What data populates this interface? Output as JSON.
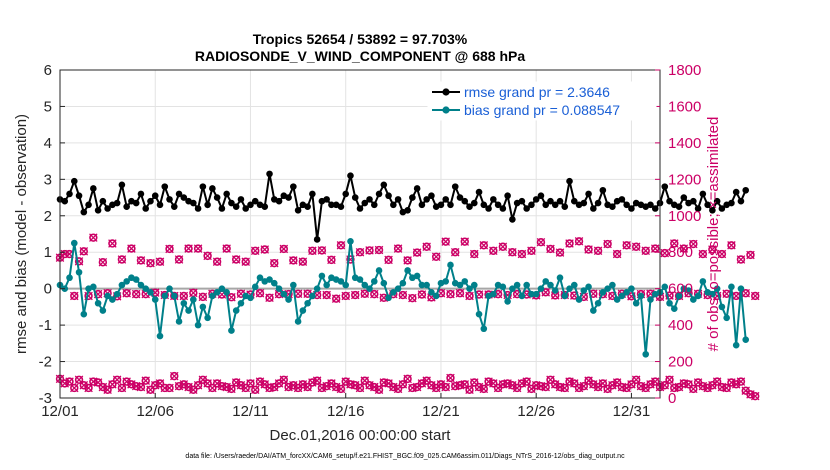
{
  "chart_data": {
    "type": "line",
    "title": "Tropics 52654 / 53892 = 97.703%",
    "subtitle": "RADIOSONDE_V_WIND_COMPONENT @ 688 hPa",
    "xlabel": "Dec.01,2016 00:00:00 start",
    "ylabel": "rmse and bias (model - observation)",
    "ylabel_right": "# of obs: o=possible; ×=assimilated",
    "xlim": [
      0,
      31.5
    ],
    "ylim": [
      -3,
      6
    ],
    "ylim_right": [
      0,
      1800
    ],
    "x_ticks": [
      0,
      5,
      10,
      15,
      20,
      25,
      30
    ],
    "x_tick_labels": [
      "12/01",
      "12/06",
      "12/11",
      "12/16",
      "12/21",
      "12/26",
      "12/31"
    ],
    "y_ticks": [
      -3,
      -2,
      -1,
      0,
      1,
      2,
      3,
      4,
      5,
      6
    ],
    "y_tick_labels": [
      "-3",
      "-2",
      "-1",
      "0",
      "1",
      "2",
      "3",
      "4",
      "5",
      "6"
    ],
    "y_ticks_right": [
      0,
      200,
      400,
      600,
      800,
      1000,
      1200,
      1400,
      1600,
      1800
    ],
    "y_tick_labels_right": [
      "0",
      "200",
      "400",
      "600",
      "800",
      "1000",
      "1200",
      "1400",
      "1600",
      "1800"
    ],
    "grid": true,
    "legend_position": "top-right",
    "footnote": "data file: /Users/raeder/DAI/ATM_forcXX/CAM6_setup/f.e21.FHIST_BGC.f09_025.CAM6assim.011/Diags_NTrS_2016-12/obs_diag_output.nc",
    "x_step": 0.25,
    "series": [
      {
        "name": "rmse grand pr = 2.3646",
        "color": "#000000",
        "marker": "circle",
        "values": [
          2.45,
          2.4,
          2.6,
          2.95,
          2.55,
          2.1,
          2.3,
          2.75,
          2.15,
          2.4,
          2.2,
          2.3,
          2.35,
          2.85,
          2.25,
          2.4,
          2.35,
          2.6,
          2.2,
          2.4,
          2.55,
          2.3,
          2.8,
          2.45,
          2.25,
          2.6,
          2.5,
          2.4,
          2.35,
          2.2,
          2.8,
          2.3,
          2.75,
          2.5,
          2.2,
          2.6,
          2.35,
          2.25,
          2.45,
          2.2,
          2.3,
          2.4,
          2.3,
          2.25,
          3.15,
          2.45,
          2.4,
          2.55,
          2.5,
          2.8,
          2.15,
          2.3,
          2.25,
          2.6,
          1.35,
          2.4,
          2.45,
          2.3,
          2.3,
          2.25,
          2.6,
          3.1,
          2.5,
          2.2,
          2.35,
          2.45,
          2.3,
          2.6,
          2.85,
          2.55,
          2.3,
          2.45,
          2.1,
          2.15,
          2.5,
          2.75,
          2.3,
          2.45,
          2.55,
          2.25,
          2.3,
          2.45,
          2.3,
          2.8,
          2.5,
          2.4,
          2.25,
          2.35,
          2.65,
          2.3,
          2.2,
          2.45,
          2.3,
          2.2,
          2.55,
          1.9,
          2.35,
          2.4,
          2.2,
          2.3,
          2.45,
          2.55,
          2.3,
          2.4,
          2.3,
          2.4,
          2.25,
          2.95,
          2.4,
          2.3,
          2.35,
          2.6,
          2.2,
          2.35,
          2.7,
          2.3,
          2.25,
          2.4,
          2.45,
          2.3,
          2.2,
          2.35,
          2.3,
          2.25,
          2.3,
          2.2,
          2.35,
          2.8,
          2.4,
          2.3,
          2.25,
          2.5,
          2.35,
          2.4,
          2.2,
          2.6,
          2.3,
          2.15,
          2.4,
          2.2,
          2.3,
          2.35,
          2.65,
          2.4,
          2.7
        ]
      },
      {
        "name": "bias grand pr = 0.088547",
        "color": "#00808a",
        "marker": "circle",
        "values": [
          0.1,
          0.0,
          0.3,
          1.25,
          0.45,
          -0.7,
          0.0,
          0.05,
          -0.4,
          -0.6,
          -0.2,
          -0.3,
          -0.15,
          0.1,
          0.2,
          0.3,
          0.25,
          0.1,
          0.0,
          -0.1,
          -0.3,
          -1.3,
          -0.2,
          0.0,
          -0.2,
          -0.9,
          -0.4,
          -0.6,
          -0.3,
          -1.0,
          -0.5,
          -0.8,
          -0.2,
          -0.1,
          0.0,
          -0.1,
          -1.15,
          -0.6,
          -0.4,
          -0.2,
          -0.25,
          0.05,
          0.3,
          0.2,
          0.25,
          0.15,
          0.0,
          -0.15,
          -0.3,
          0.1,
          -0.9,
          -0.6,
          -0.4,
          -0.2,
          0.0,
          0.35,
          0.1,
          0.3,
          0.25,
          0.2,
          0.1,
          1.3,
          0.3,
          0.25,
          0.1,
          0.0,
          0.2,
          0.5,
          0.15,
          -0.25,
          -0.1,
          0.0,
          0.15,
          0.5,
          0.3,
          0.35,
          0.1,
          0.1,
          -0.1,
          -0.2,
          0.15,
          0.2,
          0.65,
          0.15,
          0.1,
          0.2,
          0.0,
          0.1,
          -0.7,
          -1.1,
          -0.2,
          -0.15,
          0.1,
          0.05,
          -0.35,
          0.0,
          0.1,
          -0.2,
          0.1,
          -0.15,
          -0.15,
          0.0,
          0.2,
          0.1,
          -0.05,
          0.3,
          -0.2,
          0.0,
          0.1,
          -0.3,
          -0.05,
          0.05,
          -0.6,
          -0.4,
          -0.1,
          0.0,
          0.1,
          -0.3,
          -0.2,
          -0.1,
          0.0,
          -0.4,
          -0.2,
          -1.8,
          -0.3,
          -0.15,
          -0.1,
          0.05,
          -0.4,
          -0.55,
          -0.2,
          0.0,
          -0.05,
          -0.3,
          -0.2,
          0.2,
          -0.1,
          -0.15,
          0.0,
          -0.5,
          -0.8,
          0.05,
          -1.55,
          0.0,
          -1.4
        ]
      },
      {
        "name": "possible observations",
        "axis": "right",
        "color": "#cc0066",
        "marker": "circle-open",
        "values": [
          770,
          790,
          790,
          560,
          750,
          805,
          560,
          880,
          570,
          745,
          575,
          848,
          558,
          760,
          575,
          820,
          570,
          755,
          570,
          740,
          578,
          748,
          565,
          818,
          560,
          760,
          560,
          820,
          577,
          820,
          555,
          780,
          572,
          748,
          568,
          820,
          553,
          760,
          572,
          748,
          568,
          808,
          575,
          815,
          550,
          740,
          570,
          818,
          570,
          755,
          572,
          748,
          572,
          808,
          565,
          810,
          565,
          758,
          545,
          838,
          560,
          760,
          565,
          800,
          572,
          810,
          570,
          812,
          550,
          758,
          570,
          820,
          565,
          755,
          548,
          798,
          568,
          830,
          552,
          775,
          575,
          858,
          570,
          800,
          575,
          858,
          560,
          790,
          568,
          838,
          568,
          808,
          570,
          830,
          565,
          800,
          570,
          790,
          568,
          808,
          563,
          855,
          580,
          818,
          563,
          798,
          565,
          848,
          562,
          860,
          555,
          815,
          572,
          808,
          570,
          845,
          560,
          790,
          572,
          838,
          558,
          830,
          570,
          808,
          572,
          820,
          555,
          795,
          562,
          848,
          560,
          820,
          575,
          845,
          572,
          790,
          565,
          815,
          560,
          790,
          572,
          838,
          560,
          760,
          575,
          785,
          560
        ]
      },
      {
        "name": "assimilated observations",
        "axis": "right",
        "color": "#cc0066",
        "marker": "x",
        "values": [
          105,
          80,
          90,
          55,
          100,
          70,
          55,
          90,
          85,
          60,
          45,
          75,
          100,
          55,
          90,
          75,
          65,
          60,
          95,
          45,
          70,
          80,
          55,
          55,
          120,
          65,
          75,
          60,
          45,
          70,
          100,
          80,
          55,
          80,
          65,
          60,
          50,
          85,
          70,
          55,
          80,
          45,
          90,
          75,
          55,
          60,
          80,
          100,
          60,
          70,
          55,
          75,
          60,
          85,
          95,
          55,
          65,
          80,
          60,
          50,
          90,
          75,
          70,
          55,
          95,
          70,
          60,
          45,
          85,
          80,
          60,
          50,
          75,
          105,
          55,
          60,
          80,
          95,
          70,
          55,
          75,
          60,
          110,
          65,
          70,
          75,
          45,
          85,
          60,
          50,
          90,
          80,
          55,
          75,
          80,
          70,
          55,
          80,
          90,
          50,
          70,
          65,
          60,
          100,
          75,
          60,
          55,
          90,
          80,
          55,
          65,
          95,
          75,
          60,
          80,
          50,
          70,
          85,
          60,
          55,
          75,
          100,
          65,
          55,
          75,
          90,
          60,
          70,
          100,
          55,
          60,
          80,
          75,
          50,
          85,
          65,
          55,
          70,
          90,
          60,
          55,
          85,
          75,
          90,
          40,
          20,
          10
        ]
      }
    ]
  }
}
